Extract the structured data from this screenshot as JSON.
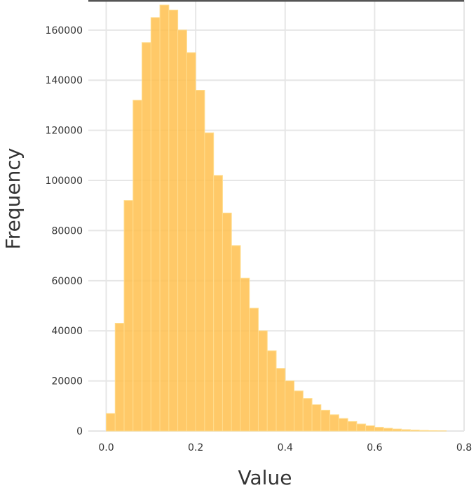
{
  "chart_data": {
    "type": "bar",
    "title": "",
    "xlabel": "Value",
    "ylabel": "Frequency",
    "xlim": [
      -0.04,
      0.8
    ],
    "ylim": [
      0,
      172000
    ],
    "grid": true,
    "bar_color": "#ffc04d",
    "bar_edge_color": "#ffdd8f",
    "grid_color": "#e6e6e6",
    "top_spine_color": "#555555",
    "text_color": "#333333",
    "bin_width": 0.02,
    "x": [
      0.0,
      0.02,
      0.04,
      0.06,
      0.08,
      0.1,
      0.12,
      0.14,
      0.16,
      0.18,
      0.2,
      0.22,
      0.24,
      0.26,
      0.28,
      0.3,
      0.32,
      0.34,
      0.36,
      0.38,
      0.4,
      0.42,
      0.44,
      0.46,
      0.48,
      0.5,
      0.52,
      0.54,
      0.56,
      0.58,
      0.6,
      0.62,
      0.64,
      0.66,
      0.68,
      0.7,
      0.72,
      0.74
    ],
    "values": [
      7000,
      43000,
      92000,
      132000,
      155000,
      165000,
      170000,
      168000,
      160000,
      151000,
      136000,
      119000,
      102000,
      87000,
      74000,
      61000,
      49000,
      40000,
      32000,
      25000,
      20000,
      16000,
      13000,
      10500,
      8300,
      6500,
      5000,
      3800,
      2800,
      2100,
      1500,
      1100,
      800,
      550,
      380,
      250,
      150,
      90
    ],
    "xticks": [
      0.0,
      0.2,
      0.4,
      0.6,
      0.8
    ],
    "xtick_labels": [
      "0.0",
      "0.2",
      "0.4",
      "0.6",
      "0.8"
    ],
    "yticks": [
      0,
      20000,
      40000,
      60000,
      80000,
      100000,
      120000,
      140000,
      160000
    ],
    "ytick_labels": [
      "0",
      "20000",
      "40000",
      "60000",
      "80000",
      "100000",
      "120000",
      "140000",
      "160000"
    ]
  }
}
